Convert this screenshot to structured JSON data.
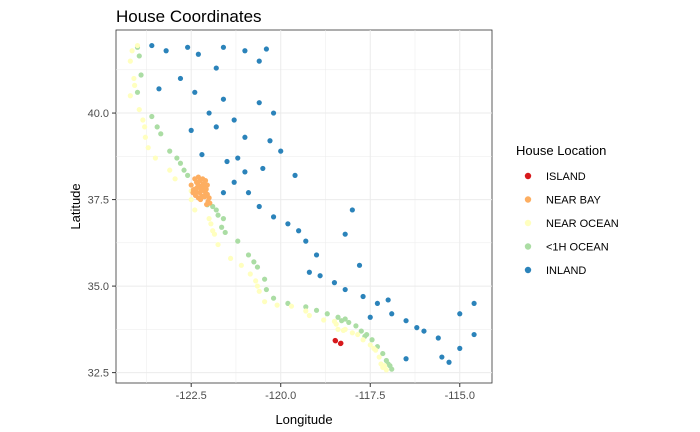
{
  "chart_data": {
    "type": "scatter",
    "title": "House Coordinates",
    "xlabel": "Longitude",
    "ylabel": "Latitude",
    "xlim": [
      -124.6,
      -114.1
    ],
    "ylim": [
      32.2,
      42.4
    ],
    "x_ticks": [
      -122.5,
      -120.0,
      -117.5,
      -115.0
    ],
    "x_tick_labels": [
      "-122.5",
      "-120.0",
      "-117.5",
      "-115.0"
    ],
    "y_ticks": [
      32.5,
      35.0,
      37.5,
      40.0
    ],
    "y_tick_labels": [
      "32.5",
      "35.0",
      "37.5",
      "40.0"
    ],
    "grid": true,
    "legend_position": "right",
    "legend_title": "House Location",
    "series": [
      {
        "name": "ISLAND",
        "color": "#d7191c",
        "points": [
          [
            -118.33,
            33.34
          ],
          [
            -118.32,
            33.35
          ],
          [
            -118.48,
            33.43
          ],
          [
            -118.47,
            33.42
          ]
        ]
      },
      {
        "name": "NEAR BAY",
        "color": "#fdae61",
        "points": [
          [
            -122.42,
            37.75
          ],
          [
            -122.4,
            37.8
          ],
          [
            -122.27,
            37.85
          ],
          [
            -122.22,
            37.82
          ],
          [
            -122.28,
            37.9
          ],
          [
            -122.31,
            37.95
          ],
          [
            -122.35,
            38.0
          ],
          [
            -122.5,
            37.92
          ],
          [
            -122.15,
            37.76
          ],
          [
            -122.1,
            37.7
          ],
          [
            -122.05,
            37.65
          ],
          [
            -122.2,
            37.6
          ],
          [
            -122.3,
            37.55
          ],
          [
            -122.38,
            37.62
          ],
          [
            -122.45,
            37.7
          ],
          [
            -122.12,
            37.88
          ],
          [
            -122.05,
            37.92
          ],
          [
            -122.25,
            38.05
          ],
          [
            -122.18,
            38.1
          ],
          [
            -122.1,
            38.05
          ],
          [
            -122.3,
            38.15
          ],
          [
            -122.4,
            38.1
          ],
          [
            -122.03,
            37.45
          ],
          [
            -121.98,
            37.4
          ],
          [
            -122.07,
            37.36
          ],
          [
            -122.21,
            37.78
          ],
          [
            -122.33,
            37.85
          ],
          [
            -122.26,
            37.7
          ],
          [
            -122.16,
            37.95
          ],
          [
            -122.08,
            37.8
          ],
          [
            -122.35,
            37.72
          ],
          [
            -122.24,
            37.5
          ],
          [
            -122.13,
            37.58
          ],
          [
            -122.44,
            37.78
          ],
          [
            -122.0,
            37.55
          ]
        ]
      },
      {
        "name": "NEAR OCEAN",
        "color": "#ffffbf",
        "points": [
          [
            -124.15,
            41.8
          ],
          [
            -124.2,
            41.5
          ],
          [
            -124.1,
            41.0
          ],
          [
            -124.08,
            40.8
          ],
          [
            -124.2,
            40.5
          ],
          [
            -123.95,
            40.1
          ],
          [
            -123.8,
            39.6
          ],
          [
            -123.78,
            39.3
          ],
          [
            -123.7,
            39.0
          ],
          [
            -123.5,
            38.7
          ],
          [
            -123.1,
            38.35
          ],
          [
            -122.95,
            38.1
          ],
          [
            -122.5,
            37.75
          ],
          [
            -122.5,
            37.5
          ],
          [
            -122.4,
            37.2
          ],
          [
            -122.0,
            36.95
          ],
          [
            -121.9,
            36.6
          ],
          [
            -121.85,
            36.5
          ],
          [
            -121.75,
            36.2
          ],
          [
            -121.4,
            35.8
          ],
          [
            -121.1,
            35.6
          ],
          [
            -120.85,
            35.35
          ],
          [
            -120.7,
            35.15
          ],
          [
            -120.6,
            34.85
          ],
          [
            -120.45,
            34.55
          ],
          [
            -120.1,
            34.45
          ],
          [
            -119.7,
            34.42
          ],
          [
            -119.3,
            34.28
          ],
          [
            -119.2,
            34.15
          ],
          [
            -118.8,
            34.02
          ],
          [
            -118.5,
            33.98
          ],
          [
            -118.45,
            33.9
          ],
          [
            -118.4,
            33.75
          ],
          [
            -118.2,
            33.75
          ],
          [
            -118.0,
            33.65
          ],
          [
            -117.85,
            33.6
          ],
          [
            -117.7,
            33.45
          ],
          [
            -117.5,
            33.3
          ],
          [
            -117.35,
            33.15
          ],
          [
            -117.25,
            32.95
          ],
          [
            -117.2,
            32.75
          ],
          [
            -117.15,
            32.65
          ],
          [
            -117.05,
            32.58
          ],
          [
            -124.0,
            41.95
          ],
          [
            -123.85,
            39.8
          ],
          [
            -121.95,
            36.8
          ],
          [
            -120.65,
            35.0
          ],
          [
            -118.25,
            33.72
          ],
          [
            -117.4,
            33.2
          ],
          [
            -117.1,
            32.7
          ]
        ]
      },
      {
        "name": "<1H OCEAN",
        "color": "#abdda4",
        "points": [
          [
            -124.0,
            41.9
          ],
          [
            -123.9,
            41.1
          ],
          [
            -124.0,
            40.6
          ],
          [
            -123.6,
            39.9
          ],
          [
            -123.35,
            39.4
          ],
          [
            -123.1,
            38.9
          ],
          [
            -122.8,
            38.55
          ],
          [
            -122.7,
            38.35
          ],
          [
            -122.6,
            38.2
          ],
          [
            -122.05,
            37.35
          ],
          [
            -121.9,
            37.3
          ],
          [
            -121.8,
            37.2
          ],
          [
            -121.6,
            36.95
          ],
          [
            -121.65,
            36.7
          ],
          [
            -121.55,
            36.55
          ],
          [
            -121.2,
            36.3
          ],
          [
            -120.9,
            35.9
          ],
          [
            -120.65,
            35.55
          ],
          [
            -120.45,
            35.2
          ],
          [
            -120.4,
            34.9
          ],
          [
            -120.2,
            34.65
          ],
          [
            -119.8,
            34.5
          ],
          [
            -119.3,
            34.4
          ],
          [
            -119.0,
            34.3
          ],
          [
            -118.7,
            34.2
          ],
          [
            -118.4,
            34.1
          ],
          [
            -118.2,
            34.05
          ],
          [
            -118.1,
            33.95
          ],
          [
            -117.9,
            33.85
          ],
          [
            -117.75,
            33.7
          ],
          [
            -117.6,
            33.6
          ],
          [
            -117.45,
            33.45
          ],
          [
            -117.3,
            33.25
          ],
          [
            -117.15,
            33.05
          ],
          [
            -117.05,
            32.85
          ],
          [
            -116.95,
            32.7
          ],
          [
            -116.9,
            32.6
          ],
          [
            -123.95,
            41.65
          ],
          [
            -123.45,
            39.6
          ],
          [
            -122.9,
            38.7
          ],
          [
            -121.75,
            37.05
          ],
          [
            -120.75,
            35.7
          ],
          [
            -118.3,
            34.0
          ],
          [
            -117.65,
            33.55
          ],
          [
            -117.0,
            32.75
          ]
        ]
      },
      {
        "name": "INLAND",
        "color": "#2b83ba",
        "points": [
          [
            -123.6,
            41.95
          ],
          [
            -123.2,
            41.8
          ],
          [
            -122.6,
            41.9
          ],
          [
            -122.3,
            41.7
          ],
          [
            -121.6,
            41.9
          ],
          [
            -121.0,
            41.8
          ],
          [
            -120.4,
            41.85
          ],
          [
            -120.6,
            41.5
          ],
          [
            -121.8,
            41.3
          ],
          [
            -122.8,
            41.0
          ],
          [
            -123.4,
            40.7
          ],
          [
            -122.4,
            40.6
          ],
          [
            -121.6,
            40.4
          ],
          [
            -120.6,
            40.3
          ],
          [
            -120.2,
            40.0
          ],
          [
            -122.0,
            40.0
          ],
          [
            -121.3,
            39.8
          ],
          [
            -122.5,
            39.5
          ],
          [
            -121.8,
            39.6
          ],
          [
            -121.0,
            39.3
          ],
          [
            -120.3,
            39.2
          ],
          [
            -120.0,
            38.9
          ],
          [
            -121.2,
            38.7
          ],
          [
            -121.5,
            38.6
          ],
          [
            -122.2,
            38.8
          ],
          [
            -121.0,
            38.3
          ],
          [
            -120.5,
            38.4
          ],
          [
            -119.6,
            38.2
          ],
          [
            -121.3,
            38.0
          ],
          [
            -120.9,
            37.7
          ],
          [
            -121.6,
            37.7
          ],
          [
            -120.6,
            37.3
          ],
          [
            -120.2,
            37.0
          ],
          [
            -119.8,
            36.8
          ],
          [
            -119.5,
            36.6
          ],
          [
            -119.3,
            36.3
          ],
          [
            -119.0,
            35.9
          ],
          [
            -119.2,
            35.4
          ],
          [
            -118.9,
            35.3
          ],
          [
            -118.5,
            35.1
          ],
          [
            -118.2,
            34.9
          ],
          [
            -117.7,
            34.7
          ],
          [
            -117.3,
            34.5
          ],
          [
            -117.0,
            34.6
          ],
          [
            -116.9,
            34.2
          ],
          [
            -117.5,
            34.1
          ],
          [
            -116.5,
            34.0
          ],
          [
            -116.2,
            33.8
          ],
          [
            -116.0,
            33.7
          ],
          [
            -115.6,
            33.5
          ],
          [
            -115.5,
            32.95
          ],
          [
            -115.3,
            32.8
          ],
          [
            -115.0,
            33.2
          ],
          [
            -114.6,
            33.6
          ],
          [
            -114.6,
            34.5
          ],
          [
            -115.0,
            34.2
          ],
          [
            -118.2,
            36.5
          ],
          [
            -118.0,
            37.2
          ],
          [
            -117.8,
            35.6
          ],
          [
            -116.5,
            32.9
          ]
        ]
      }
    ]
  }
}
